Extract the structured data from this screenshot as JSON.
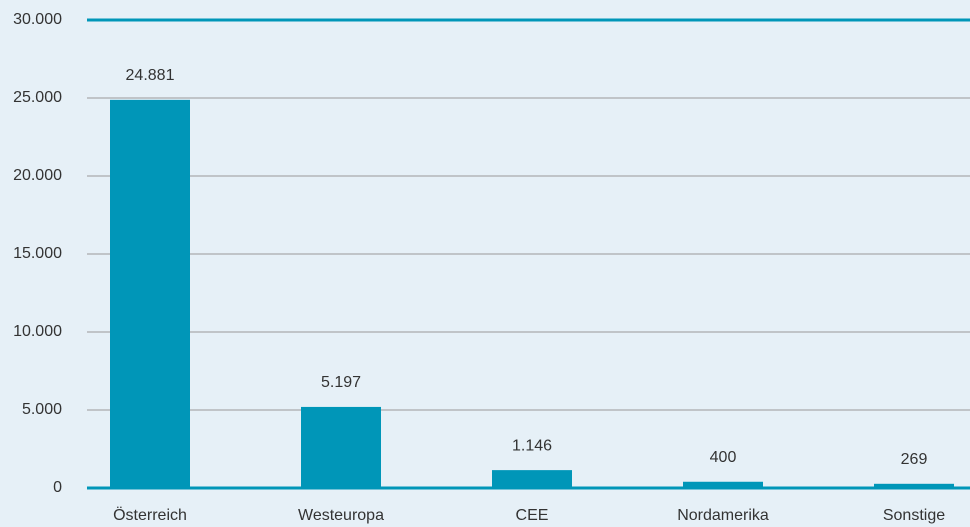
{
  "chart_data": {
    "type": "bar",
    "categories": [
      "Österreich",
      "Westeuropa",
      "CEE",
      "Nordamerika",
      "Sonstige"
    ],
    "values": [
      24881,
      5197,
      1146,
      400,
      269
    ],
    "value_labels": [
      "24.881",
      "5.197",
      "1.146",
      "400",
      "269"
    ],
    "color": "#0096b8",
    "ylim": [
      0,
      30000
    ],
    "yticks": [
      0,
      {
        "value": 5000,
        "label": "5.000"
      },
      {
        "value": 10000,
        "label": "10.000"
      },
      {
        "value": 15000,
        "label": "15.000"
      },
      {
        "value": 20000,
        "label": "20.000"
      },
      {
        "value": 25000,
        "label": "25.000"
      },
      {
        "value": 30000,
        "label": "30.000"
      }
    ],
    "grid": true
  }
}
